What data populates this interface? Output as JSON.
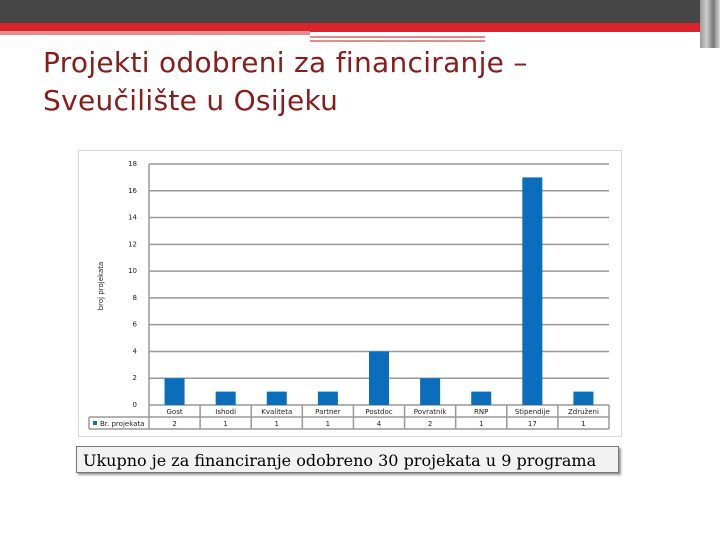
{
  "slide": {
    "title_line1": "Projekti odobreni za financiranje –",
    "title_line2": "Sveučilište u Osijeku",
    "caption": "Ukupno je za financiranje odobreno 30 projekata u 9 programa"
  },
  "colors": {
    "bar": "#0a6ebd",
    "title": "#8b1a1a",
    "accent_red": "#d9232d"
  },
  "chart_data": {
    "type": "bar",
    "categories": [
      "Gost",
      "Ishodi",
      "Kvaliteta",
      "Partner",
      "Postdoc",
      "Povratnik",
      "RNP",
      "Stipendije",
      "Združeni"
    ],
    "series": [
      {
        "name": "Br. projekata",
        "values": [
          2,
          1,
          1,
          1,
          4,
          2,
          1,
          17,
          1
        ]
      }
    ],
    "ylabel": "broj projekata",
    "ylim": [
      0,
      18
    ],
    "yticks": [
      0,
      2,
      4,
      6,
      8,
      10,
      12,
      14,
      16,
      18
    ],
    "grid": true,
    "data_table": true,
    "legend": "data-table"
  }
}
